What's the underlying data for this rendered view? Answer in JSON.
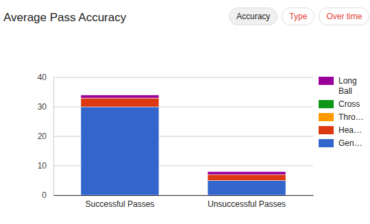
{
  "buttons": [
    {
      "label": "Accuracy",
      "active": true
    },
    {
      "label": "Type",
      "active": false
    },
    {
      "label": "Over time",
      "active": false
    }
  ],
  "chart_data": {
    "type": "bar",
    "title": "Average Pass Accuracy",
    "stacked": true,
    "grid": true,
    "legend": "right",
    "categories": [
      "Successful Passes",
      "Unsuccessful Passes"
    ],
    "series": [
      {
        "name": "Gen…",
        "color": "#3366cc",
        "values": [
          30,
          5
        ]
      },
      {
        "name": "Hea…",
        "color": "#dc3912",
        "values": [
          3,
          2
        ]
      },
      {
        "name": "Thro…",
        "color": "#ff9900",
        "values": [
          0,
          0
        ]
      },
      {
        "name": "Cross",
        "color": "#109618",
        "values": [
          0,
          0
        ]
      },
      {
        "name": "Long Ball",
        "color": "#990099",
        "values": [
          1,
          1
        ]
      }
    ],
    "ylim": [
      0,
      40
    ],
    "yticks": [
      0,
      10,
      20,
      30,
      40
    ]
  }
}
